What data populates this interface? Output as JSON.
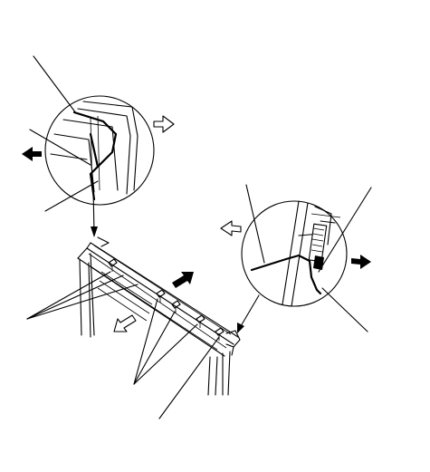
{
  "figure": {
    "background_color": "#ffffff",
    "line_color": "#000000",
    "components": [
      "left-detail-circle",
      "right-detail-circle",
      "main-panel-assembly",
      "wire-clip-left",
      "wire-clip-right"
    ],
    "arrows": {
      "left_detail_in": "open-right",
      "left_detail_out": "solid-left",
      "right_detail_in": "open-left",
      "right_detail_out": "solid-right",
      "panel_push": "solid-up-right",
      "panel_pull": "open-down-left"
    }
  }
}
